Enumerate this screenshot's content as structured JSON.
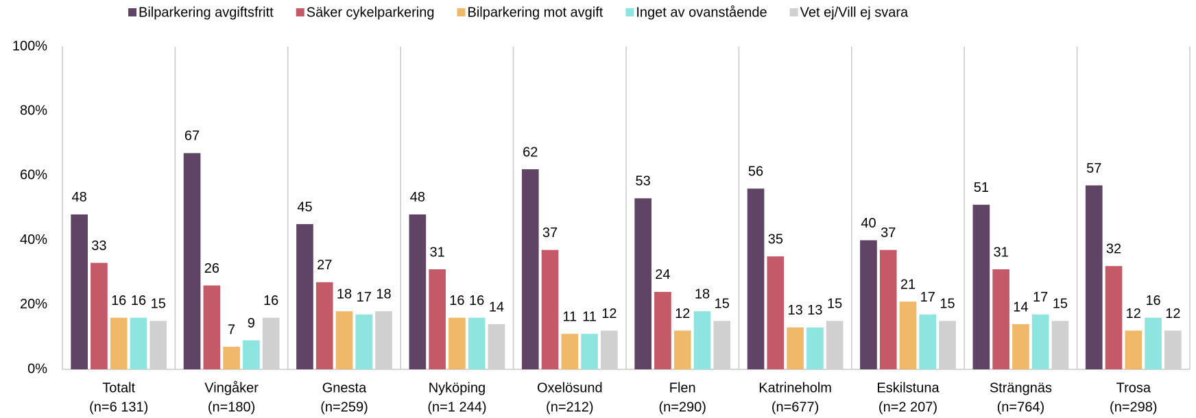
{
  "chart_data": {
    "type": "bar",
    "categories": [
      [
        "Totalt",
        "(n=6 131)"
      ],
      [
        "Vingåker",
        "(n=180)"
      ],
      [
        "Gnesta",
        "(n=259)"
      ],
      [
        "Nyköping",
        "(n=1 244)"
      ],
      [
        "Oxelösund",
        "(n=212)"
      ],
      [
        "Flen",
        "(n=290)"
      ],
      [
        "Katrineholm",
        "(n=677)"
      ],
      [
        "Eskilstuna",
        "(n=2 207)"
      ],
      [
        "Strängnäs",
        "(n=764)"
      ],
      [
        "Trosa",
        "(n=298)"
      ]
    ],
    "series": [
      {
        "name": "Bilparkering avgiftsfritt",
        "color": "#5f4465",
        "values": [
          48,
          67,
          45,
          48,
          62,
          53,
          56,
          40,
          51,
          57
        ]
      },
      {
        "name": "Säker cykelparkering",
        "color": "#c45a68",
        "values": [
          33,
          26,
          27,
          31,
          37,
          24,
          35,
          37,
          31,
          32
        ]
      },
      {
        "name": "Bilparkering mot avgift",
        "color": "#f0b96a",
        "values": [
          16,
          7,
          18,
          16,
          11,
          12,
          13,
          21,
          14,
          12
        ]
      },
      {
        "name": "Inget av ovanstående",
        "color": "#8ee5e0",
        "values": [
          16,
          9,
          17,
          16,
          11,
          18,
          13,
          17,
          17,
          16
        ]
      },
      {
        "name": "Vet ej/Vill ej svara",
        "color": "#d0d0d0",
        "values": [
          15,
          16,
          18,
          14,
          12,
          15,
          15,
          15,
          15,
          12
        ]
      }
    ],
    "ylim": [
      0,
      100
    ],
    "yticks": [
      {
        "value": 0,
        "label": "0%"
      },
      {
        "value": 20,
        "label": "20%"
      },
      {
        "value": 40,
        "label": "40%"
      },
      {
        "value": 60,
        "label": "60%"
      },
      {
        "value": 80,
        "label": "80%"
      },
      {
        "value": 100,
        "label": "100%"
      }
    ],
    "legend": "top"
  }
}
